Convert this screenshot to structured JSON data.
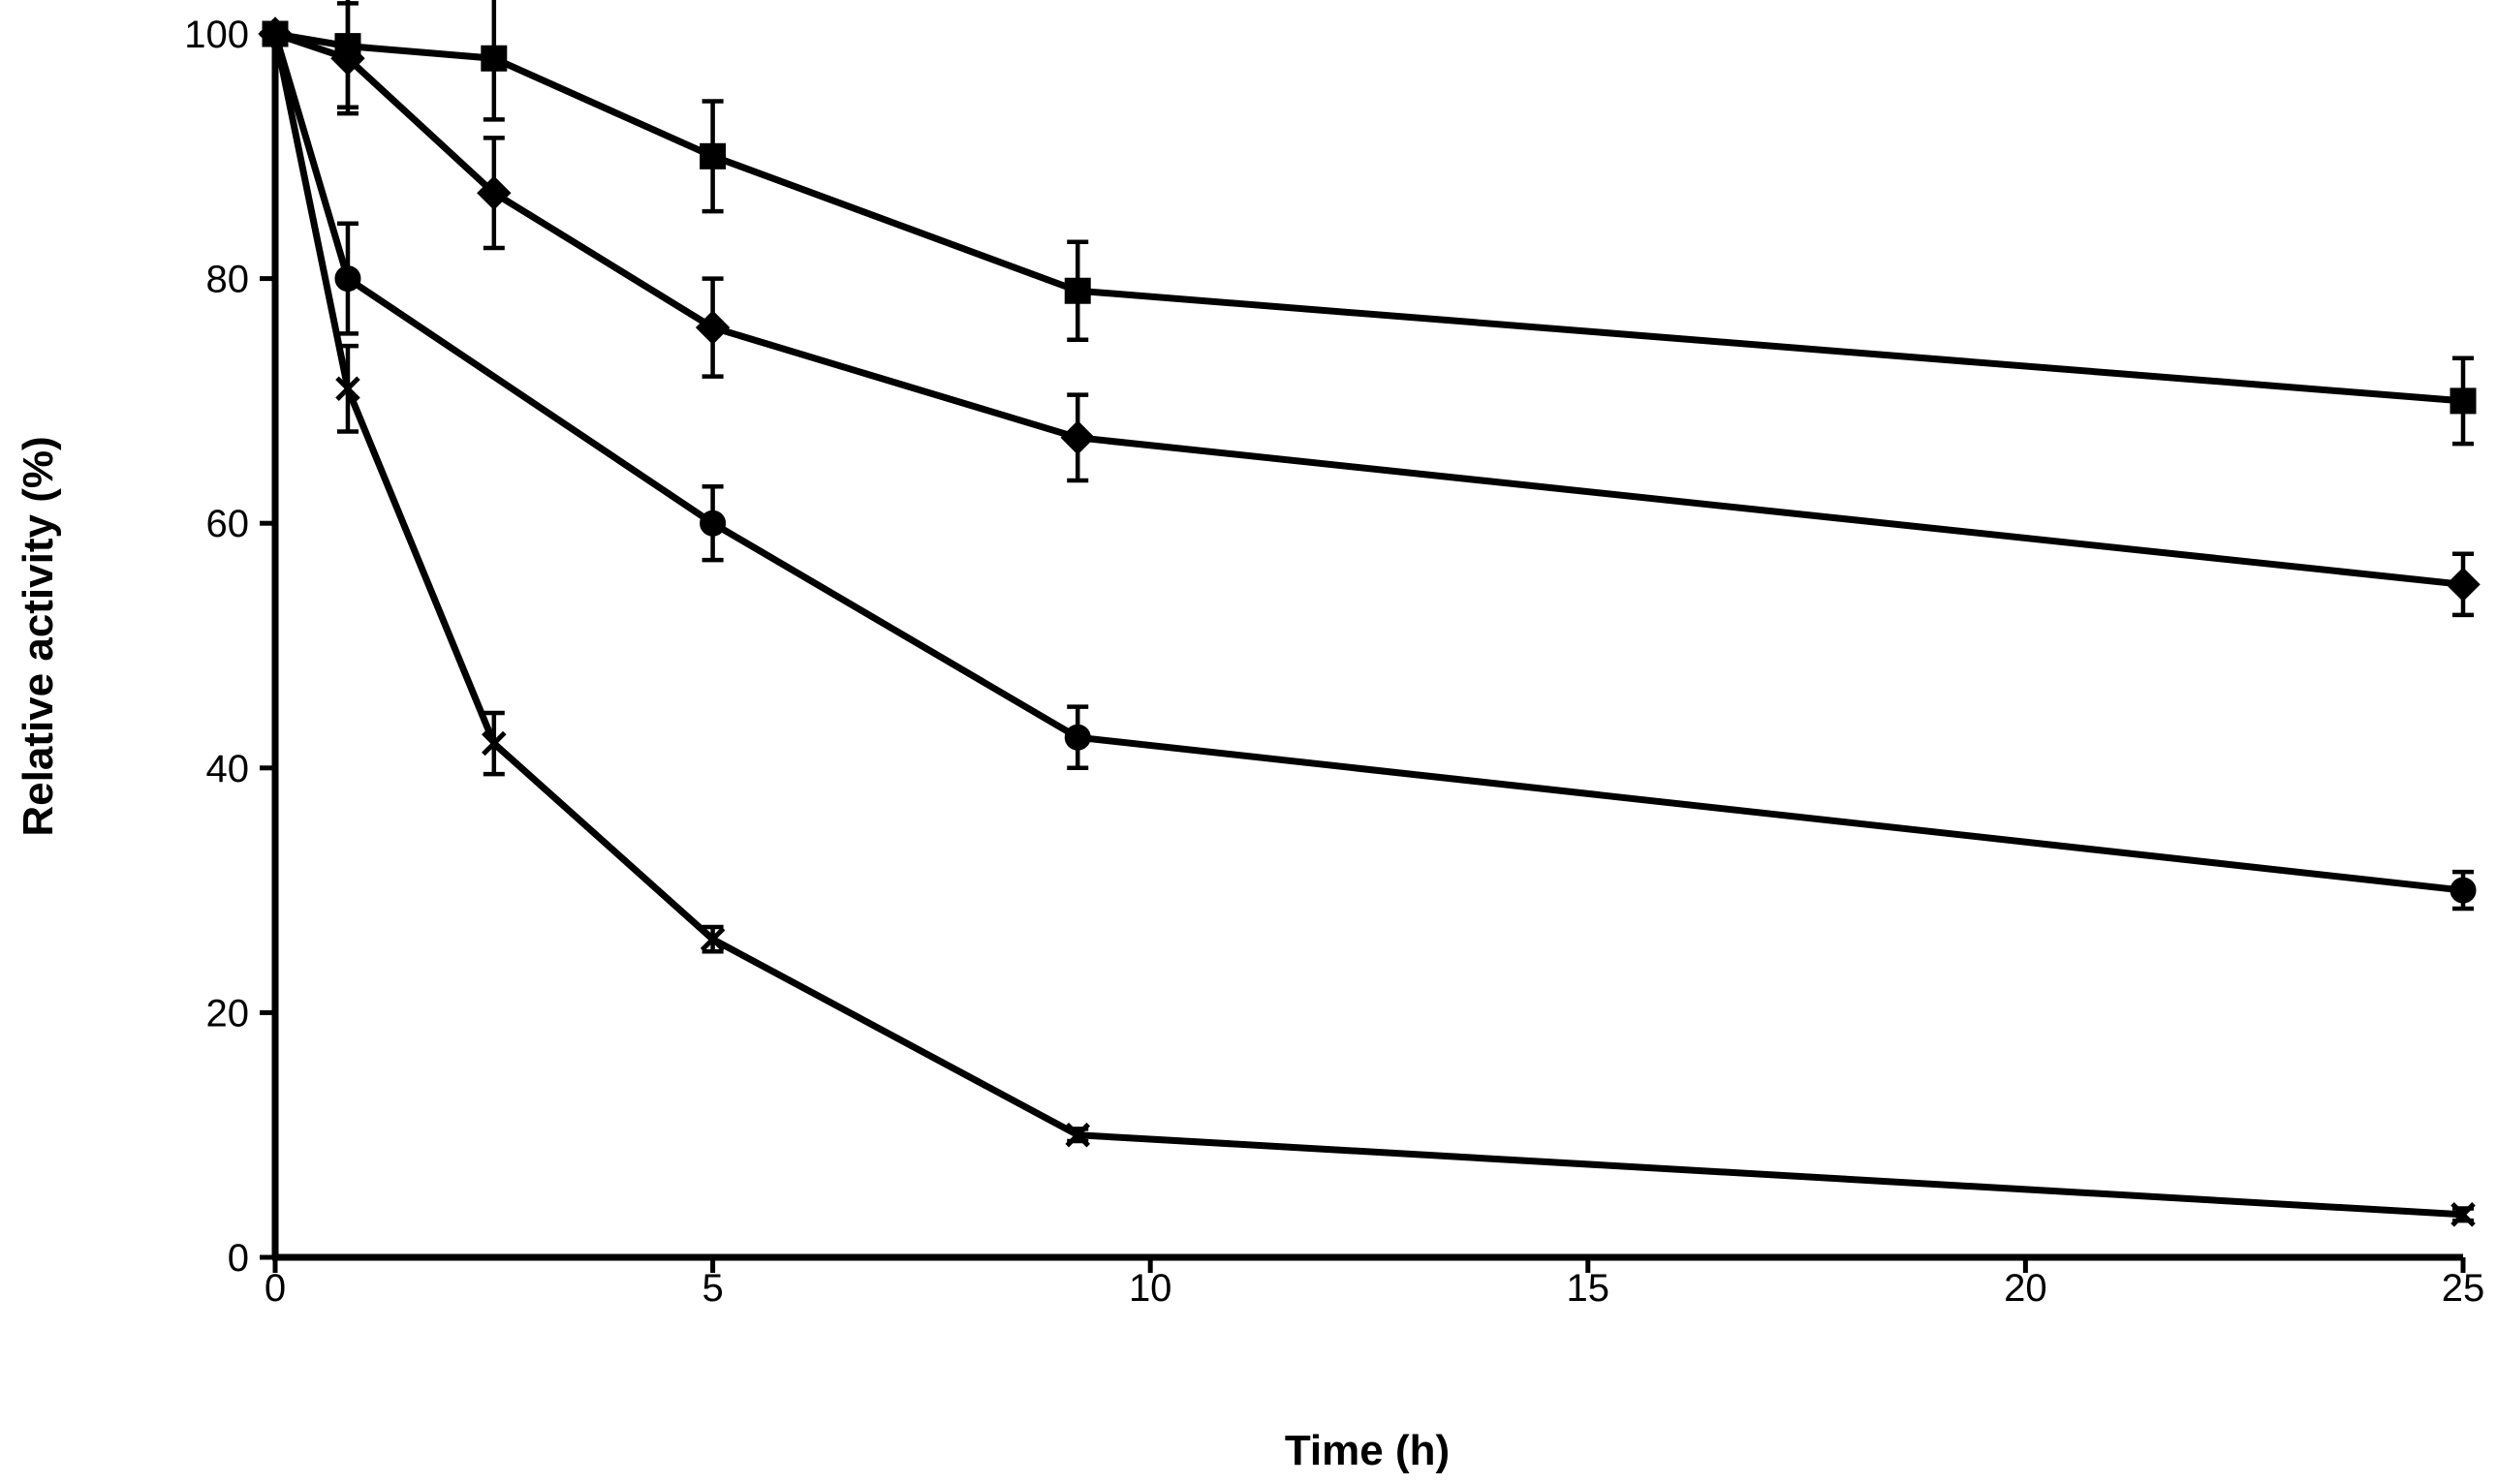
{
  "chart_data": {
    "type": "line",
    "title": "",
    "xlabel": "Time (h)",
    "ylabel": "Relative activity (%)",
    "xlim": [
      0,
      25
    ],
    "ylim": [
      0,
      100
    ],
    "xticks": [
      0,
      5,
      10,
      15,
      20,
      25
    ],
    "yticks": [
      0,
      20,
      40,
      60,
      80,
      100
    ],
    "grid": false,
    "legend": "none",
    "series": [
      {
        "name": "square",
        "marker": "square",
        "x": [
          0,
          0.83,
          2.5,
          5,
          9.17,
          25
        ],
        "y": [
          100,
          99,
          98,
          90,
          79,
          70
        ],
        "err": [
          0,
          5,
          5,
          4.5,
          4,
          3.5
        ]
      },
      {
        "name": "diamond",
        "marker": "diamond",
        "x": [
          0,
          0.83,
          2.5,
          5,
          9.17,
          25
        ],
        "y": [
          100,
          98,
          87,
          76,
          67,
          55
        ],
        "err": [
          0,
          4.5,
          4.5,
          4,
          3.5,
          2.5
        ]
      },
      {
        "name": "circle",
        "marker": "circle",
        "x": [
          0,
          0.83,
          2.5,
          5,
          9.17,
          25
        ],
        "y": [
          100,
          80,
          null,
          60,
          42.5,
          30
        ],
        "err": [
          0,
          4.5,
          0,
          3,
          2.5,
          1.5
        ]
      },
      {
        "name": "cross",
        "marker": "x",
        "x": [
          0,
          0.83,
          2.5,
          5,
          9.17,
          25
        ],
        "y": [
          100,
          71,
          42,
          26,
          10,
          3.5
        ],
        "err": [
          0,
          3.5,
          2.5,
          1,
          0.5,
          0.5
        ]
      }
    ]
  }
}
